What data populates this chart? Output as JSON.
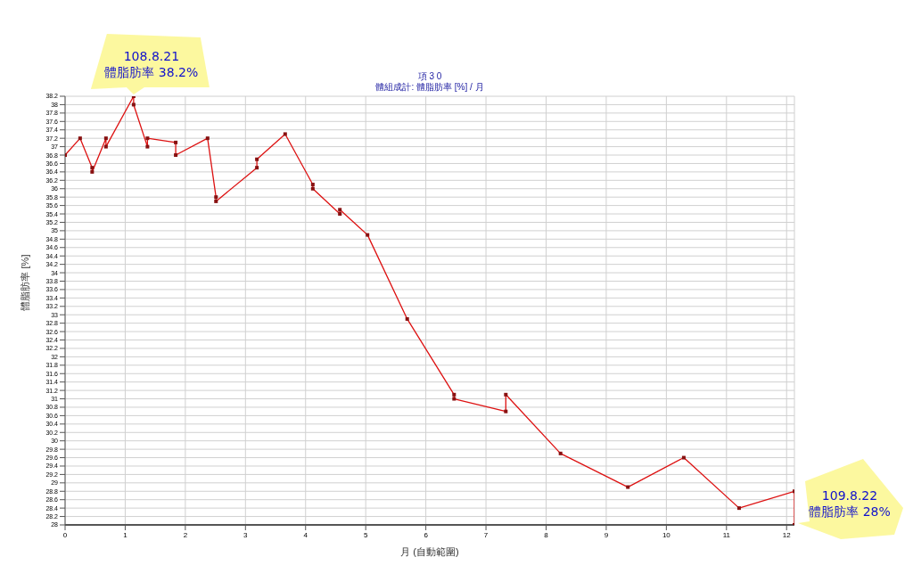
{
  "chart_data": {
    "type": "line",
    "title": "項 3 0",
    "subtitle": "體組成計: 體脂肪率 [%] / 月",
    "xlabel": "月 (自動範圍)",
    "ylabel": "體脂肪率 [%]",
    "x": [
      0,
      0.25,
      0.45,
      0.45,
      0.68,
      0.68,
      1.14,
      1.14,
      1.37,
      1.37,
      1.84,
      1.84,
      2.37,
      2.51,
      2.51,
      3.19,
      3.19,
      3.66,
      4.12,
      4.12,
      4.57,
      4.57,
      5.03,
      5.69,
      6.47,
      6.47,
      7.33,
      7.33,
      8.24,
      9.36,
      10.29,
      11.21,
      12.13,
      12.13
    ],
    "series": [
      {
        "color": "#dd1111",
        "values": [
          36.8,
          37.2,
          36.5,
          36.4,
          37.2,
          37.0,
          38.2,
          38.0,
          37.0,
          37.2,
          37.1,
          36.8,
          37.2,
          35.8,
          35.7,
          36.5,
          36.7,
          37.3,
          36.1,
          36.0,
          35.4,
          35.5,
          34.9,
          32.9,
          31.1,
          31.0,
          30.7,
          31.1,
          29.7,
          28.9,
          29.6,
          28.4,
          28.8,
          28.0
        ]
      }
    ],
    "xlim": [
      0,
      12.13
    ],
    "xticks": [
      0,
      1,
      2,
      3,
      4,
      5,
      6,
      7,
      8,
      9,
      10,
      11,
      12
    ],
    "ylim": [
      28,
      38.2
    ],
    "yticks": [
      28,
      28.2,
      28.4,
      28.6,
      28.8,
      29,
      29.2,
      29.4,
      29.6,
      29.8,
      30,
      30.2,
      30.4,
      30.6,
      30.8,
      31,
      31.2,
      31.4,
      31.6,
      31.8,
      32,
      32.2,
      32.4,
      32.6,
      32.8,
      33,
      33.2,
      33.4,
      33.6,
      33.8,
      34,
      34.2,
      34.4,
      34.6,
      34.8,
      35,
      35.2,
      35.4,
      35.6,
      35.8,
      36,
      36.2,
      36.4,
      36.6,
      36.8,
      37,
      37.2,
      37.4,
      37.6,
      37.8,
      38,
      38.2
    ],
    "grid": true,
    "marker": "square",
    "line_style": "solid",
    "annotations": [
      {
        "text": "108.8.21\n體脂肪率 38.2%",
        "x": 1.14,
        "y": 38.2
      },
      {
        "text": "109.8.22\n體脂肪率 28%",
        "x": 12.13,
        "y": 28
      }
    ]
  }
}
